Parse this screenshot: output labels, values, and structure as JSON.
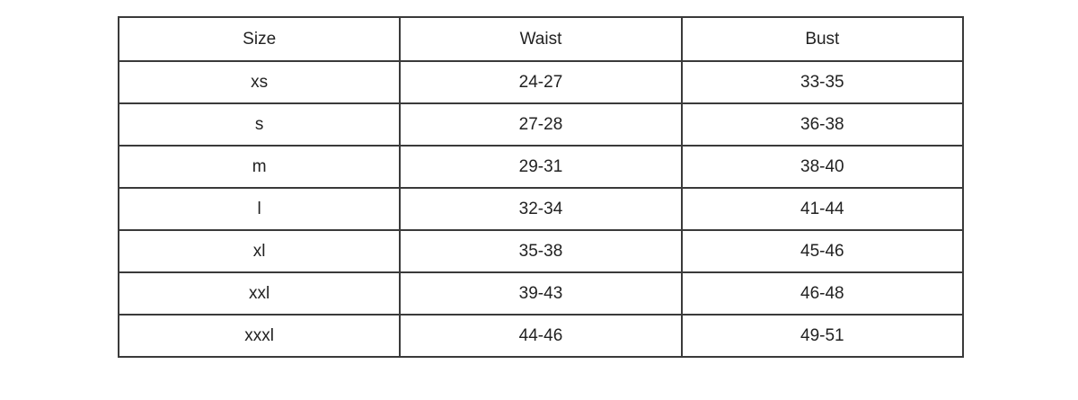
{
  "table": {
    "headers": [
      "Size",
      "Waist",
      "Bust"
    ],
    "rows": [
      [
        "xs",
        "24-27",
        "33-35"
      ],
      [
        "s",
        "27-28",
        "36-38"
      ],
      [
        "m",
        "29-31",
        "38-40"
      ],
      [
        "l",
        "32-34",
        "41-44"
      ],
      [
        "xl",
        "35-38",
        "45-46"
      ],
      [
        "xxl",
        "39-43",
        "46-48"
      ],
      [
        "xxxl",
        "44-46",
        "49-51"
      ]
    ]
  }
}
